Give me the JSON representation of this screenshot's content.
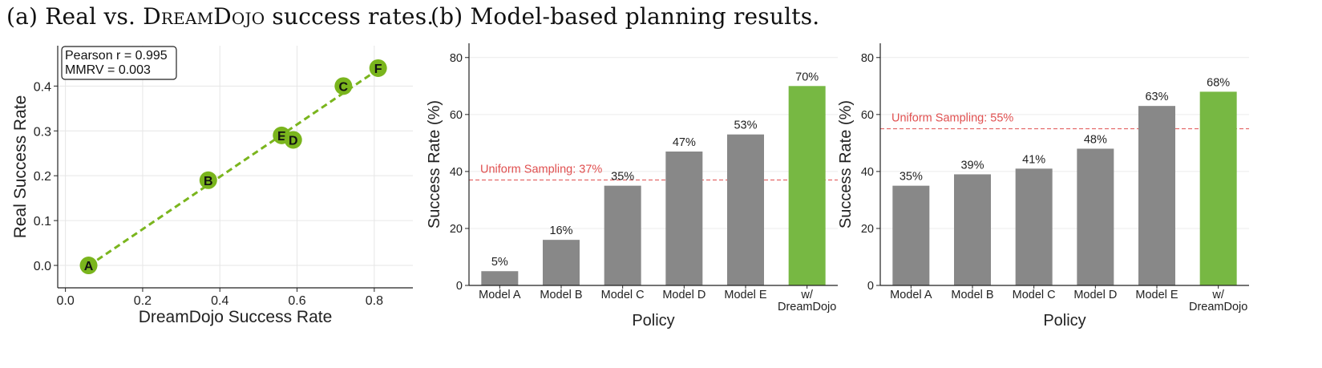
{
  "headings": {
    "a_prefix": "(a) Real vs. ",
    "a_brand": "DreamDojo",
    "a_suffix": " success rates.",
    "b": "(b) Model-based planning results."
  },
  "colors": {
    "accent_green": "#77b843",
    "scatter_green": "#7ab51d",
    "bar_gray": "#888888",
    "baseline_red": "#e05050"
  },
  "chart_data": [
    {
      "type": "scatter",
      "xlabel": "DreamDojo Success Rate",
      "ylabel": "Real Success Rate",
      "xlim": [
        -0.02,
        0.9
      ],
      "ylim": [
        -0.05,
        0.49
      ],
      "xticks": [
        "0.0",
        "0.2",
        "0.4",
        "0.6",
        "0.8"
      ],
      "yticks": [
        "0.0",
        "0.1",
        "0.2",
        "0.3",
        "0.4"
      ],
      "grid": true,
      "annotation": [
        "Pearson r = 0.995",
        "MMRV = 0.003"
      ],
      "fit_line": true,
      "points": [
        {
          "label": "A",
          "x": 0.06,
          "y": 0.0
        },
        {
          "label": "B",
          "x": 0.37,
          "y": 0.19
        },
        {
          "label": "E",
          "x": 0.56,
          "y": 0.29
        },
        {
          "label": "D",
          "x": 0.59,
          "y": 0.28
        },
        {
          "label": "C",
          "x": 0.72,
          "y": 0.4
        },
        {
          "label": "F",
          "x": 0.81,
          "y": 0.44
        }
      ]
    },
    {
      "type": "bar",
      "xlabel": "Policy",
      "ylabel": "Success Rate (%)",
      "ylim": [
        0,
        85
      ],
      "yticks": [
        "0",
        "20",
        "40",
        "60",
        "80"
      ],
      "categories": [
        "Model A",
        "Model B",
        "Model C",
        "Model D",
        "Model E",
        "w/\nDreamDojo"
      ],
      "values": [
        5,
        16,
        35,
        47,
        53,
        70
      ],
      "value_labels": [
        "5%",
        "16%",
        "35%",
        "47%",
        "53%",
        "70%"
      ],
      "highlight_index": 5,
      "baseline": {
        "label": "Uniform Sampling: 37%",
        "value": 37
      }
    },
    {
      "type": "bar",
      "xlabel": "Policy",
      "ylabel": "Success Rate (%)",
      "ylim": [
        0,
        85
      ],
      "yticks": [
        "0",
        "20",
        "40",
        "60",
        "80"
      ],
      "categories": [
        "Model A",
        "Model B",
        "Model C",
        "Model D",
        "Model E",
        "w/\nDreamDojo"
      ],
      "values": [
        35,
        39,
        41,
        48,
        63,
        68
      ],
      "value_labels": [
        "35%",
        "39%",
        "41%",
        "48%",
        "63%",
        "68%"
      ],
      "highlight_index": 5,
      "baseline": {
        "label": "Uniform Sampling: 55%",
        "value": 55
      }
    }
  ]
}
